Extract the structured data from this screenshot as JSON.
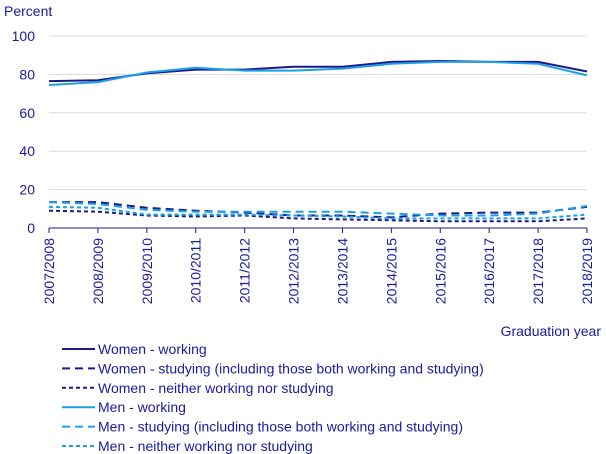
{
  "chart_data": {
    "type": "line",
    "ylabel": "Percent",
    "xlabel": "Graduation year",
    "ylim": [
      0,
      100
    ],
    "yticks": [
      0,
      20,
      40,
      60,
      80,
      100
    ],
    "grid": "horizontal",
    "legend_placement": "bottom",
    "categories": [
      "2007/2008",
      "2008/2009",
      "2009/2010",
      "2010/2011",
      "2011/2012",
      "2012/2013",
      "2013/2014",
      "2014/2015",
      "2015/2016",
      "2016/2017",
      "2017/2018",
      "2018/2019"
    ],
    "series": [
      {
        "name": "Women - working",
        "color": "#1a1a8c",
        "dash": "solid",
        "values": [
          76.5,
          77,
          80.5,
          82.5,
          82.5,
          84,
          84,
          86.5,
          87,
          86.5,
          86.5,
          81.5
        ]
      },
      {
        "name": "Women - studying (including those both working and studying)",
        "color": "#1a1a8c",
        "dash": "long",
        "values": [
          13.5,
          13.5,
          10.5,
          9,
          8,
          6.5,
          6.5,
          5.5,
          7.5,
          8,
          8,
          11
        ]
      },
      {
        "name": "Women - neither working nor studying",
        "color": "#1a1a8c",
        "dash": "short",
        "values": [
          9,
          8.5,
          6.5,
          6,
          6.5,
          5,
          4.5,
          4,
          3.5,
          3.5,
          3.5,
          5
        ]
      },
      {
        "name": "Men - working",
        "color": "#1aa0e6",
        "dash": "solid",
        "values": [
          74.5,
          76,
          81,
          83.5,
          82,
          82,
          83,
          85.5,
          86.5,
          86.5,
          85.5,
          79.5
        ]
      },
      {
        "name": "Men - studying (including those both working and studying)",
        "color": "#1aa0e6",
        "dash": "long",
        "values": [
          13.5,
          12.5,
          9.5,
          8.5,
          8.5,
          8.5,
          8.5,
          7.5,
          6.5,
          6.5,
          7.5,
          11.5
        ]
      },
      {
        "name": "Men - neither working nor studying",
        "color": "#1aa0e6",
        "dash": "short",
        "values": [
          11,
          10.5,
          7,
          7,
          7,
          6.5,
          6,
          5,
          5,
          5,
          5,
          7
        ]
      }
    ]
  }
}
